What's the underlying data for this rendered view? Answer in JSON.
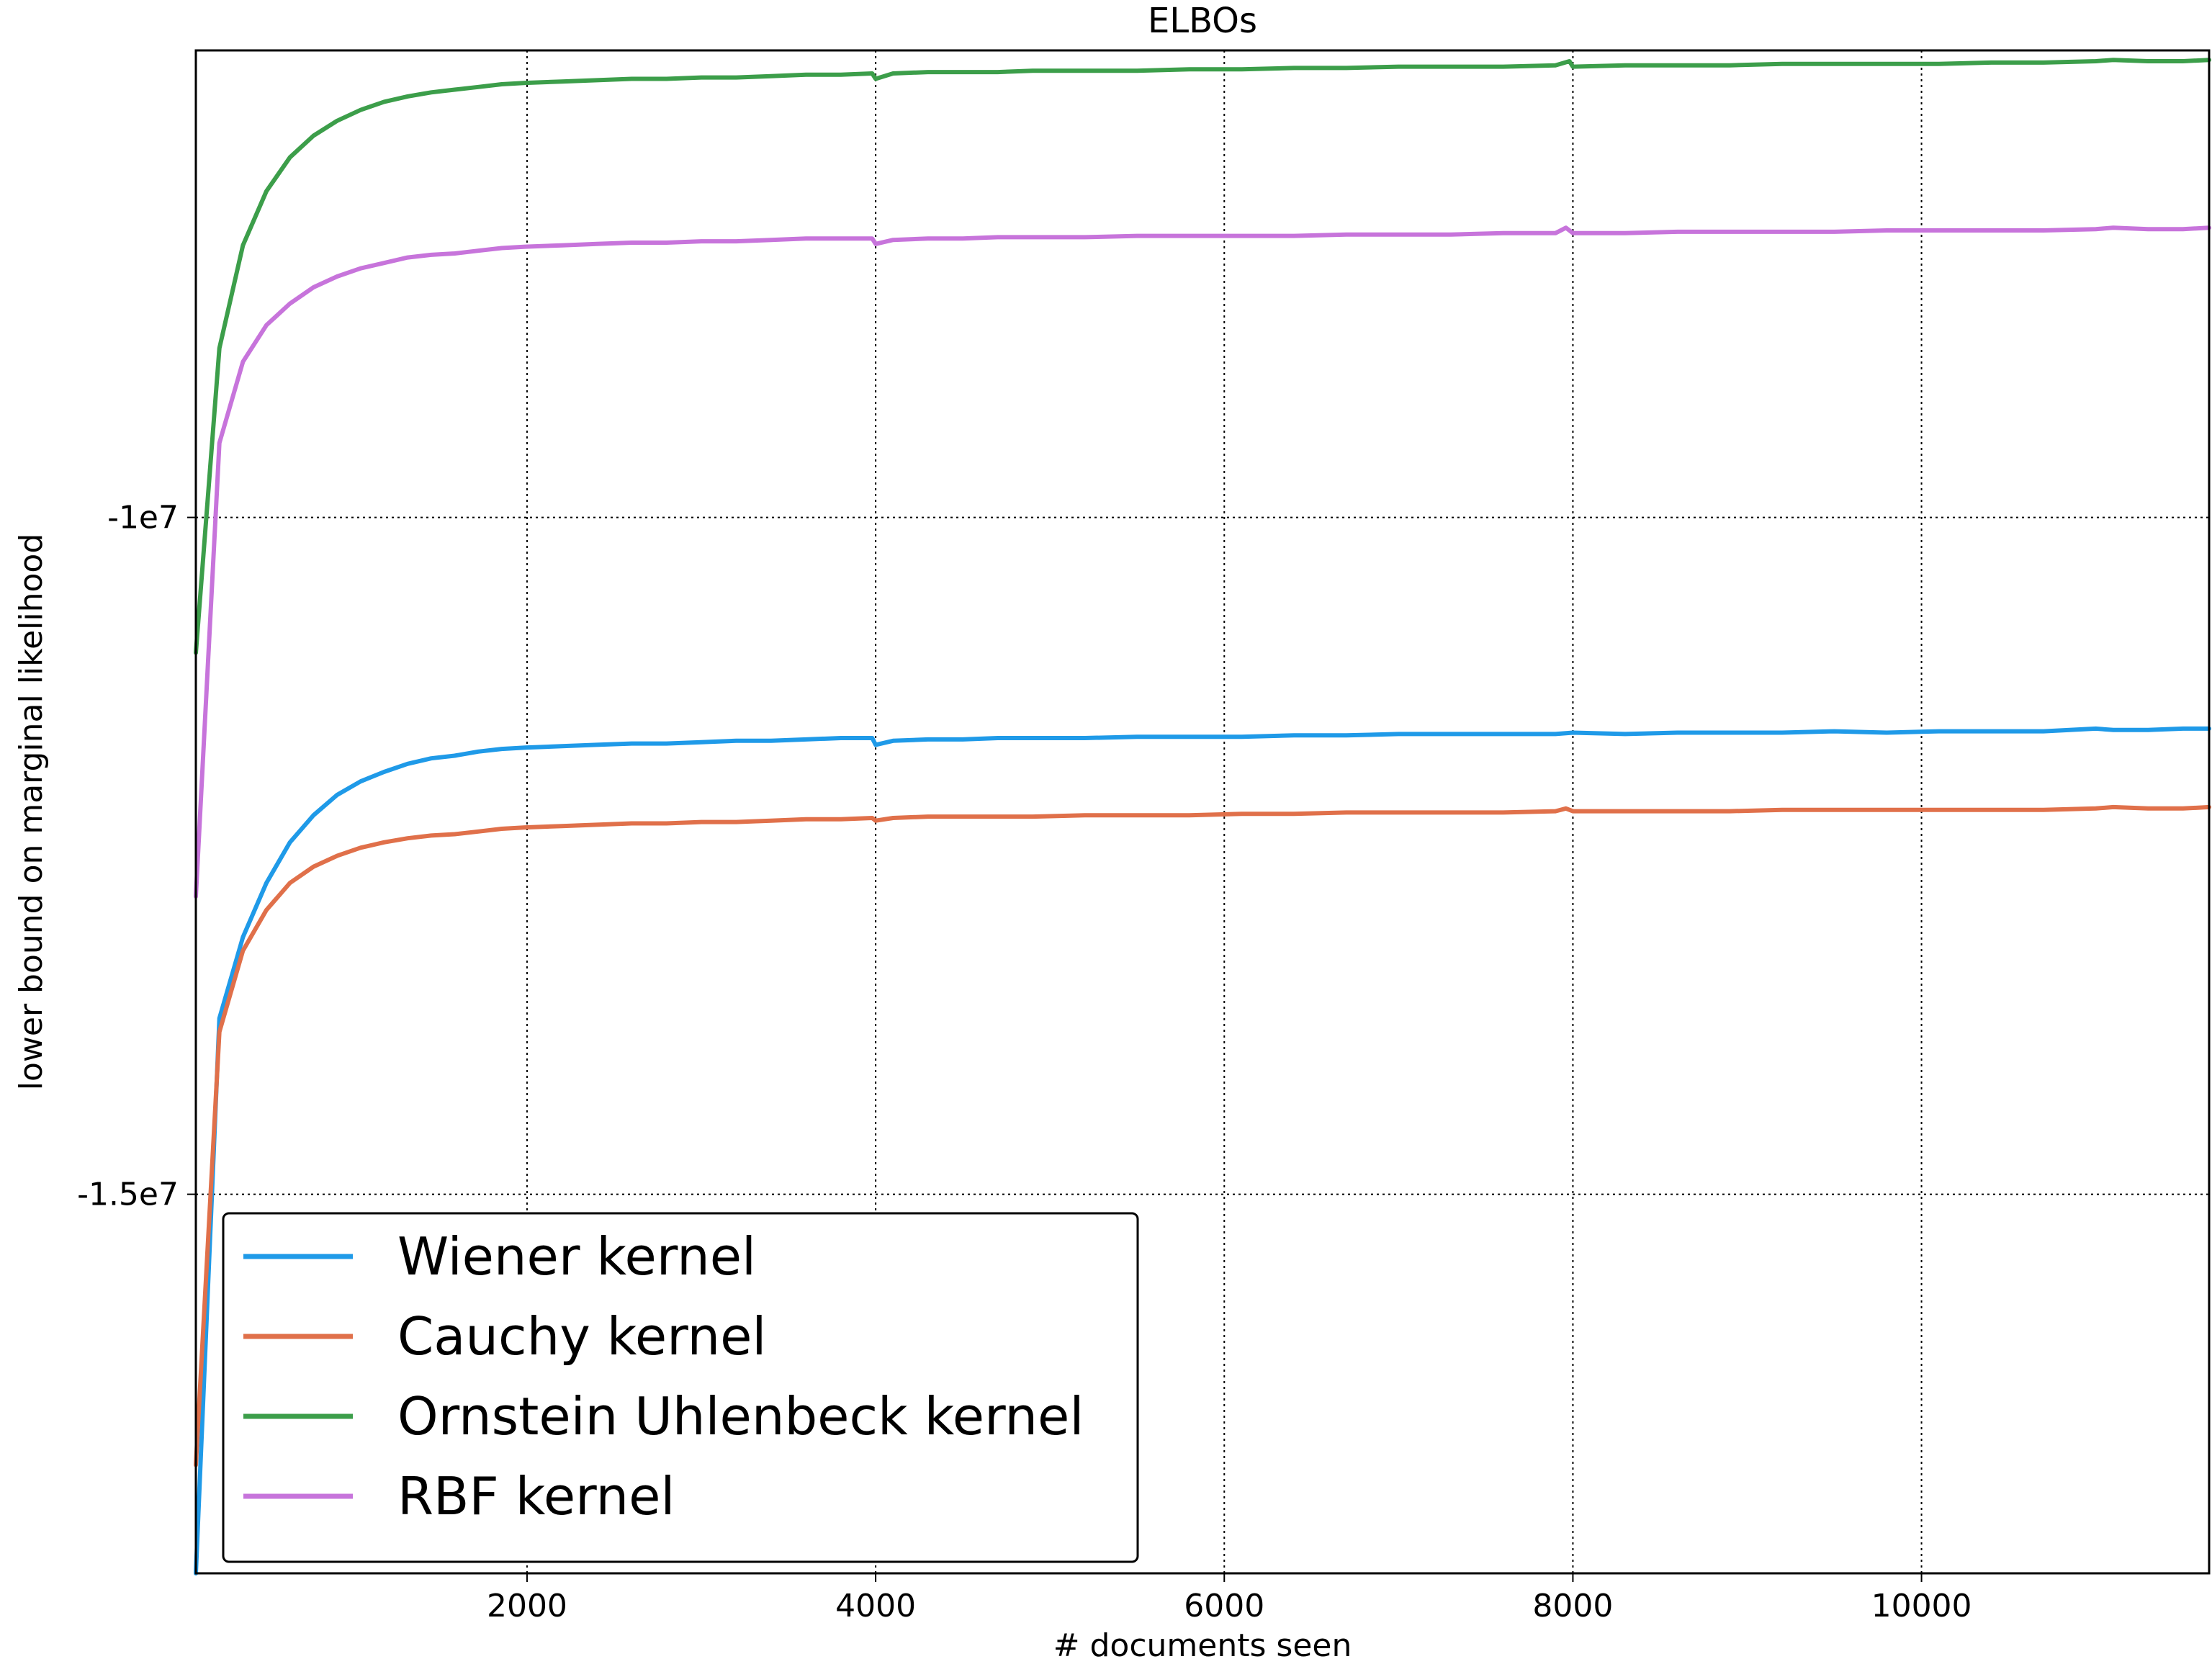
{
  "chart_data": {
    "type": "line",
    "title": "ELBOs",
    "xlabel": "# documents seen",
    "ylabel": "lower bound on marginal likelihood",
    "xlim": [
      100,
      11650
    ],
    "ylim": [
      -17800000,
      -6550000
    ],
    "x_ticks": [
      2000,
      4000,
      6000,
      8000,
      10000
    ],
    "x_tick_labels": [
      "2000",
      "4000",
      "6000",
      "8000",
      "10000"
    ],
    "y_ticks": [
      -10000000,
      -15000000
    ],
    "y_tick_labels": [
      "-1e7",
      "-1.5e7"
    ],
    "grid": true,
    "legend_placement": "lower-left",
    "series": [
      {
        "name": "Wiener kernel",
        "color": "#1f9ae8",
        "x": [
          100,
          235,
          370,
          505,
          640,
          775,
          910,
          1045,
          1180,
          1315,
          1450,
          1585,
          1720,
          1855,
          1990,
          2200,
          2400,
          2600,
          2800,
          3000,
          3200,
          3400,
          3600,
          3800,
          3980,
          4000,
          4100,
          4300,
          4500,
          4700,
          4900,
          5200,
          5500,
          5800,
          6100,
          6400,
          6700,
          7000,
          7300,
          7600,
          7900,
          8000,
          8300,
          8600,
          8900,
          9200,
          9500,
          9800,
          10100,
          10400,
          10700,
          11000,
          11100,
          11300,
          11500,
          11650
        ],
        "y": [
          -17800000,
          -13700000,
          -13100000,
          -12700000,
          -12400000,
          -12200000,
          -12050000,
          -11950000,
          -11880000,
          -11820000,
          -11780000,
          -11760000,
          -11730000,
          -11710000,
          -11700000,
          -11690000,
          -11680000,
          -11670000,
          -11670000,
          -11660000,
          -11650000,
          -11650000,
          -11640000,
          -11630000,
          -11630000,
          -11680000,
          -11650000,
          -11640000,
          -11640000,
          -11630000,
          -11630000,
          -11630000,
          -11620000,
          -11620000,
          -11620000,
          -11610000,
          -11610000,
          -11600000,
          -11600000,
          -11600000,
          -11600000,
          -11590000,
          -11600000,
          -11590000,
          -11590000,
          -11590000,
          -11580000,
          -11590000,
          -11580000,
          -11580000,
          -11580000,
          -11560000,
          -11570000,
          -11570000,
          -11560000,
          -11560000
        ]
      },
      {
        "name": "Cauchy kernel",
        "color": "#e0704a",
        "x": [
          100,
          235,
          370,
          505,
          640,
          775,
          910,
          1045,
          1180,
          1315,
          1450,
          1585,
          1720,
          1855,
          1990,
          2200,
          2400,
          2600,
          2800,
          3000,
          3200,
          3400,
          3600,
          3800,
          3980,
          4000,
          4100,
          4300,
          4500,
          4700,
          4900,
          5200,
          5500,
          5800,
          6100,
          6400,
          6700,
          7000,
          7300,
          7600,
          7900,
          7960,
          8000,
          8300,
          8600,
          8900,
          9200,
          9500,
          9800,
          10100,
          10400,
          10700,
          11000,
          11100,
          11300,
          11500,
          11650
        ],
        "y": [
          -17000000,
          -13800000,
          -13200000,
          -12900000,
          -12700000,
          -12580000,
          -12500000,
          -12440000,
          -12400000,
          -12370000,
          -12350000,
          -12340000,
          -12320000,
          -12300000,
          -12290000,
          -12280000,
          -12270000,
          -12260000,
          -12260000,
          -12250000,
          -12250000,
          -12240000,
          -12230000,
          -12230000,
          -12220000,
          -12240000,
          -12220000,
          -12210000,
          -12210000,
          -12210000,
          -12210000,
          -12200000,
          -12200000,
          -12200000,
          -12190000,
          -12190000,
          -12180000,
          -12180000,
          -12180000,
          -12180000,
          -12170000,
          -12150000,
          -12170000,
          -12170000,
          -12170000,
          -12170000,
          -12160000,
          -12160000,
          -12160000,
          -12160000,
          -12160000,
          -12160000,
          -12150000,
          -12140000,
          -12150000,
          -12150000,
          -12140000
        ]
      },
      {
        "name": "Ornstein Uhlenbeck kernel",
        "color": "#3c9e4a",
        "x": [
          100,
          235,
          370,
          505,
          640,
          775,
          910,
          1045,
          1180,
          1315,
          1450,
          1585,
          1720,
          1855,
          1990,
          2200,
          2400,
          2600,
          2800,
          3000,
          3200,
          3400,
          3600,
          3800,
          3980,
          4000,
          4100,
          4300,
          4500,
          4700,
          4900,
          5200,
          5500,
          5800,
          6100,
          6400,
          6700,
          7000,
          7300,
          7600,
          7900,
          7980,
          8000,
          8300,
          8600,
          8900,
          9200,
          9500,
          9800,
          10100,
          10400,
          10700,
          11000,
          11100,
          11300,
          11500,
          11650
        ],
        "y": [
          -11000000,
          -8750000,
          -7990000,
          -7590000,
          -7340000,
          -7180000,
          -7070000,
          -6990000,
          -6930000,
          -6890000,
          -6860000,
          -6840000,
          -6820000,
          -6800000,
          -6790000,
          -6780000,
          -6770000,
          -6760000,
          -6760000,
          -6750000,
          -6750000,
          -6740000,
          -6730000,
          -6730000,
          -6720000,
          -6760000,
          -6720000,
          -6710000,
          -6710000,
          -6710000,
          -6700000,
          -6700000,
          -6700000,
          -6690000,
          -6690000,
          -6680000,
          -6680000,
          -6670000,
          -6670000,
          -6670000,
          -6660000,
          -6630000,
          -6670000,
          -6660000,
          -6660000,
          -6660000,
          -6650000,
          -6650000,
          -6650000,
          -6650000,
          -6640000,
          -6640000,
          -6630000,
          -6620000,
          -6630000,
          -6630000,
          -6620000
        ]
      },
      {
        "name": "RBF kernel",
        "color": "#c774db",
        "x": [
          100,
          235,
          370,
          505,
          640,
          775,
          910,
          1045,
          1180,
          1315,
          1450,
          1585,
          1720,
          1855,
          1990,
          2200,
          2400,
          2600,
          2800,
          3000,
          3200,
          3400,
          3600,
          3800,
          3980,
          4000,
          4100,
          4300,
          4500,
          4700,
          4900,
          5200,
          5500,
          5800,
          6100,
          6400,
          6700,
          7000,
          7300,
          7600,
          7900,
          7960,
          8000,
          8300,
          8600,
          8900,
          9200,
          9500,
          9800,
          10100,
          10400,
          10700,
          11000,
          11100,
          11300,
          11500,
          11650
        ],
        "y": [
          -12800000,
          -9450000,
          -8850000,
          -8580000,
          -8420000,
          -8300000,
          -8220000,
          -8160000,
          -8120000,
          -8080000,
          -8060000,
          -8050000,
          -8030000,
          -8010000,
          -8000000,
          -7990000,
          -7980000,
          -7970000,
          -7970000,
          -7960000,
          -7960000,
          -7950000,
          -7940000,
          -7940000,
          -7940000,
          -7980000,
          -7950000,
          -7940000,
          -7940000,
          -7930000,
          -7930000,
          -7930000,
          -7920000,
          -7920000,
          -7920000,
          -7920000,
          -7910000,
          -7910000,
          -7910000,
          -7900000,
          -7900000,
          -7860000,
          -7900000,
          -7900000,
          -7890000,
          -7890000,
          -7890000,
          -7890000,
          -7880000,
          -7880000,
          -7880000,
          -7880000,
          -7870000,
          -7860000,
          -7870000,
          -7870000,
          -7860000
        ]
      }
    ]
  }
}
